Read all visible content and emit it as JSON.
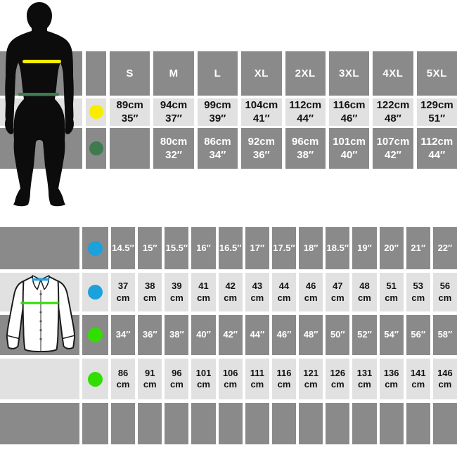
{
  "palette": {
    "dark_band": "#8a8a8a",
    "light_band": "#e1e1e1",
    "yellow": "#f8ec00",
    "dark_green": "#3e7b4f",
    "blue": "#1ba1dc",
    "bright_green": "#30df00"
  },
  "top_table": {
    "header": [
      "S",
      "M",
      "L",
      "XL",
      "2XL",
      "3XL",
      "4XL",
      "5XL"
    ],
    "rows": [
      {
        "id": "chest",
        "dot": "yellow",
        "shade": "light",
        "cells": [
          [
            "89cm",
            "35″"
          ],
          [
            "94cm",
            "37″"
          ],
          [
            "99cm",
            "39″"
          ],
          [
            "104cm",
            "41″"
          ],
          [
            "112cm",
            "44″"
          ],
          [
            "116cm",
            "46″"
          ],
          [
            "122cm",
            "48″"
          ],
          [
            "129cm",
            "51″"
          ]
        ]
      },
      {
        "id": "waist",
        "dot": "dark_green",
        "shade": "dark",
        "cells": [
          [
            "",
            ""
          ],
          [
            "80cm",
            "32″"
          ],
          [
            "86cm",
            "34″"
          ],
          [
            "92cm",
            "36″"
          ],
          [
            "96cm",
            "38″"
          ],
          [
            "101cm",
            "40″"
          ],
          [
            "107cm",
            "42″"
          ],
          [
            "112cm",
            "44″"
          ]
        ]
      }
    ]
  },
  "bottom_table": {
    "rows": [
      {
        "id": "collar_in",
        "dot": "blue",
        "shade": "dark",
        "cells": [
          [
            "14.5″"
          ],
          [
            "15″"
          ],
          [
            "15.5″"
          ],
          [
            "16″"
          ],
          [
            "16.5″"
          ],
          [
            "17″"
          ],
          [
            "17.5″"
          ],
          [
            "18″"
          ],
          [
            "18.5″"
          ],
          [
            "19″"
          ],
          [
            "20″"
          ],
          [
            "21″"
          ],
          [
            "22″"
          ]
        ]
      },
      {
        "id": "collar_cm",
        "dot": "blue",
        "shade": "light",
        "cells": [
          [
            "37",
            "cm"
          ],
          [
            "38",
            "cm"
          ],
          [
            "39",
            "cm"
          ],
          [
            "41",
            "cm"
          ],
          [
            "42",
            "cm"
          ],
          [
            "43",
            "cm"
          ],
          [
            "44",
            "cm"
          ],
          [
            "46",
            "cm"
          ],
          [
            "47",
            "cm"
          ],
          [
            "48",
            "cm"
          ],
          [
            "51",
            "cm"
          ],
          [
            "53",
            "cm"
          ],
          [
            "56",
            "cm"
          ]
        ]
      },
      {
        "id": "chest_in",
        "dot": "bright_green",
        "shade": "dark",
        "cells": [
          [
            "34″"
          ],
          [
            "36″"
          ],
          [
            "38″"
          ],
          [
            "40″"
          ],
          [
            "42″"
          ],
          [
            "44″"
          ],
          [
            "46″"
          ],
          [
            "48″"
          ],
          [
            "50″"
          ],
          [
            "52″"
          ],
          [
            "54″"
          ],
          [
            "56″"
          ],
          [
            "58″"
          ]
        ]
      },
      {
        "id": "chest_cm",
        "dot": "bright_green",
        "shade": "light",
        "cells": [
          [
            "86",
            "cm"
          ],
          [
            "91",
            "cm"
          ],
          [
            "96",
            "cm"
          ],
          [
            "101",
            "cm"
          ],
          [
            "106",
            "cm"
          ],
          [
            "111",
            "cm"
          ],
          [
            "116",
            "cm"
          ],
          [
            "121",
            "cm"
          ],
          [
            "126",
            "cm"
          ],
          [
            "131",
            "cm"
          ],
          [
            "136",
            "cm"
          ],
          [
            "141",
            "cm"
          ],
          [
            "146",
            "cm"
          ]
        ]
      },
      {
        "id": "empty",
        "dot": null,
        "shade": "dark",
        "cells": [
          [
            ""
          ],
          [
            ""
          ],
          [
            ""
          ],
          [
            ""
          ],
          [
            ""
          ],
          [
            ""
          ],
          [
            ""
          ],
          [
            ""
          ],
          [
            ""
          ],
          [
            ""
          ],
          [
            ""
          ],
          [
            ""
          ],
          [
            ""
          ]
        ]
      }
    ]
  },
  "chart_data": [
    {
      "type": "table",
      "title": "Body measurements by size (yellow marker = chest, dark green marker = waist)",
      "columns": [
        "S",
        "M",
        "L",
        "XL",
        "2XL",
        "3XL",
        "4XL",
        "5XL"
      ],
      "rows": [
        {
          "label": "chest (yellow)",
          "values_cm": [
            89,
            94,
            99,
            104,
            112,
            116,
            122,
            129
          ],
          "values_in": [
            35,
            37,
            39,
            41,
            44,
            46,
            48,
            51
          ]
        },
        {
          "label": "waist (dark green)",
          "values_cm": [
            null,
            80,
            86,
            92,
            96,
            101,
            107,
            112
          ],
          "values_in": [
            null,
            32,
            34,
            36,
            38,
            40,
            42,
            44
          ]
        }
      ]
    },
    {
      "type": "table",
      "title": "Shirt measurements (blue marker = collar, green marker = chest)",
      "rows": [
        {
          "label": "collar (blue)",
          "values_in": [
            14.5,
            15,
            15.5,
            16,
            16.5,
            17,
            17.5,
            18,
            18.5,
            19,
            20,
            21,
            22
          ],
          "values_cm": [
            37,
            38,
            39,
            41,
            42,
            43,
            44,
            46,
            47,
            48,
            51,
            53,
            56
          ]
        },
        {
          "label": "chest (green)",
          "values_in": [
            34,
            36,
            38,
            40,
            42,
            44,
            46,
            48,
            50,
            52,
            54,
            56,
            58
          ],
          "values_cm": [
            86,
            91,
            96,
            101,
            106,
            111,
            116,
            121,
            126,
            131,
            136,
            141,
            146
          ]
        }
      ]
    }
  ]
}
